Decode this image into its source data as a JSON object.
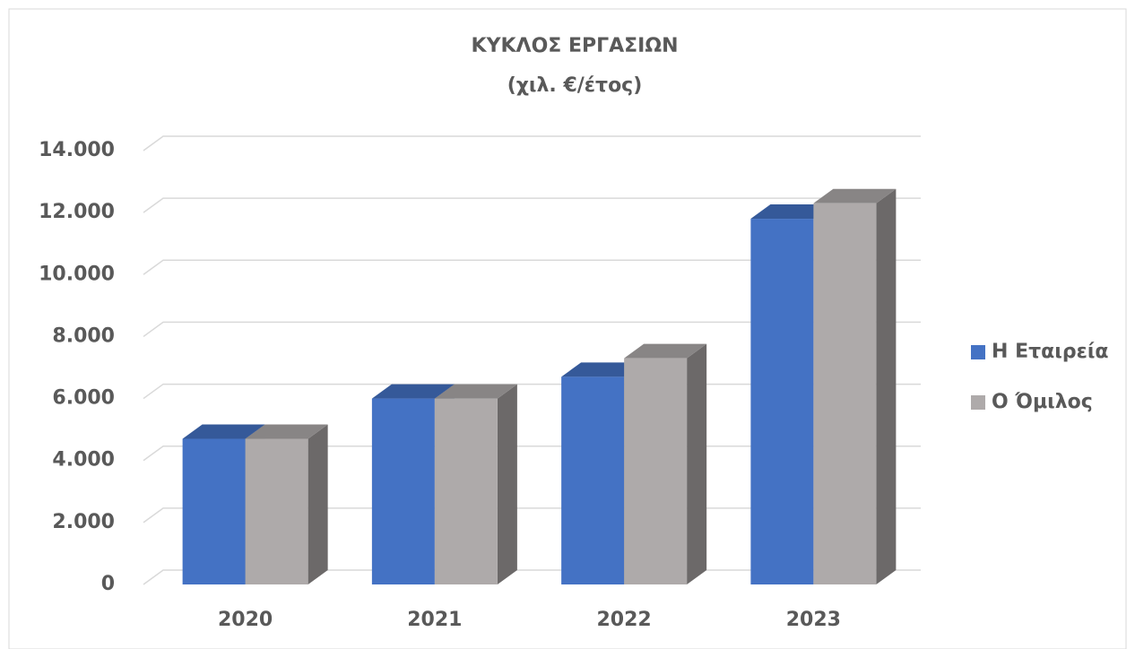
{
  "chart_data": {
    "type": "bar3d",
    "title": "ΚΥΚΛΟΣ ΕΡΓΑΣΙΩΝ",
    "subtitle": "(χιλ. €/έτος)",
    "categories": [
      "2020",
      "2021",
      "2022",
      "2023"
    ],
    "series": [
      {
        "name": "Η Εταιρεία",
        "color": "#4472c4",
        "values": [
          4700,
          6000,
          6700,
          11800
        ]
      },
      {
        "name": "Ο Όμιλος",
        "color": "#aeaaaa",
        "values": [
          4700,
          6000,
          7300,
          12300
        ]
      }
    ],
    "ylim": [
      0,
      14000
    ],
    "yticks": [
      0,
      {
        "value": 2000,
        "label": "2.000"
      },
      {
        "value": 4000,
        "label": "4.000"
      },
      {
        "value": 6000,
        "label": "6.000"
      },
      {
        "value": 8000,
        "label": "8.000"
      },
      {
        "value": 10000,
        "label": "10.000"
      },
      {
        "value": 12000,
        "label": "12.000"
      },
      {
        "value": 14000,
        "label": "14.000"
      }
    ],
    "grid": true,
    "legend": "right"
  }
}
